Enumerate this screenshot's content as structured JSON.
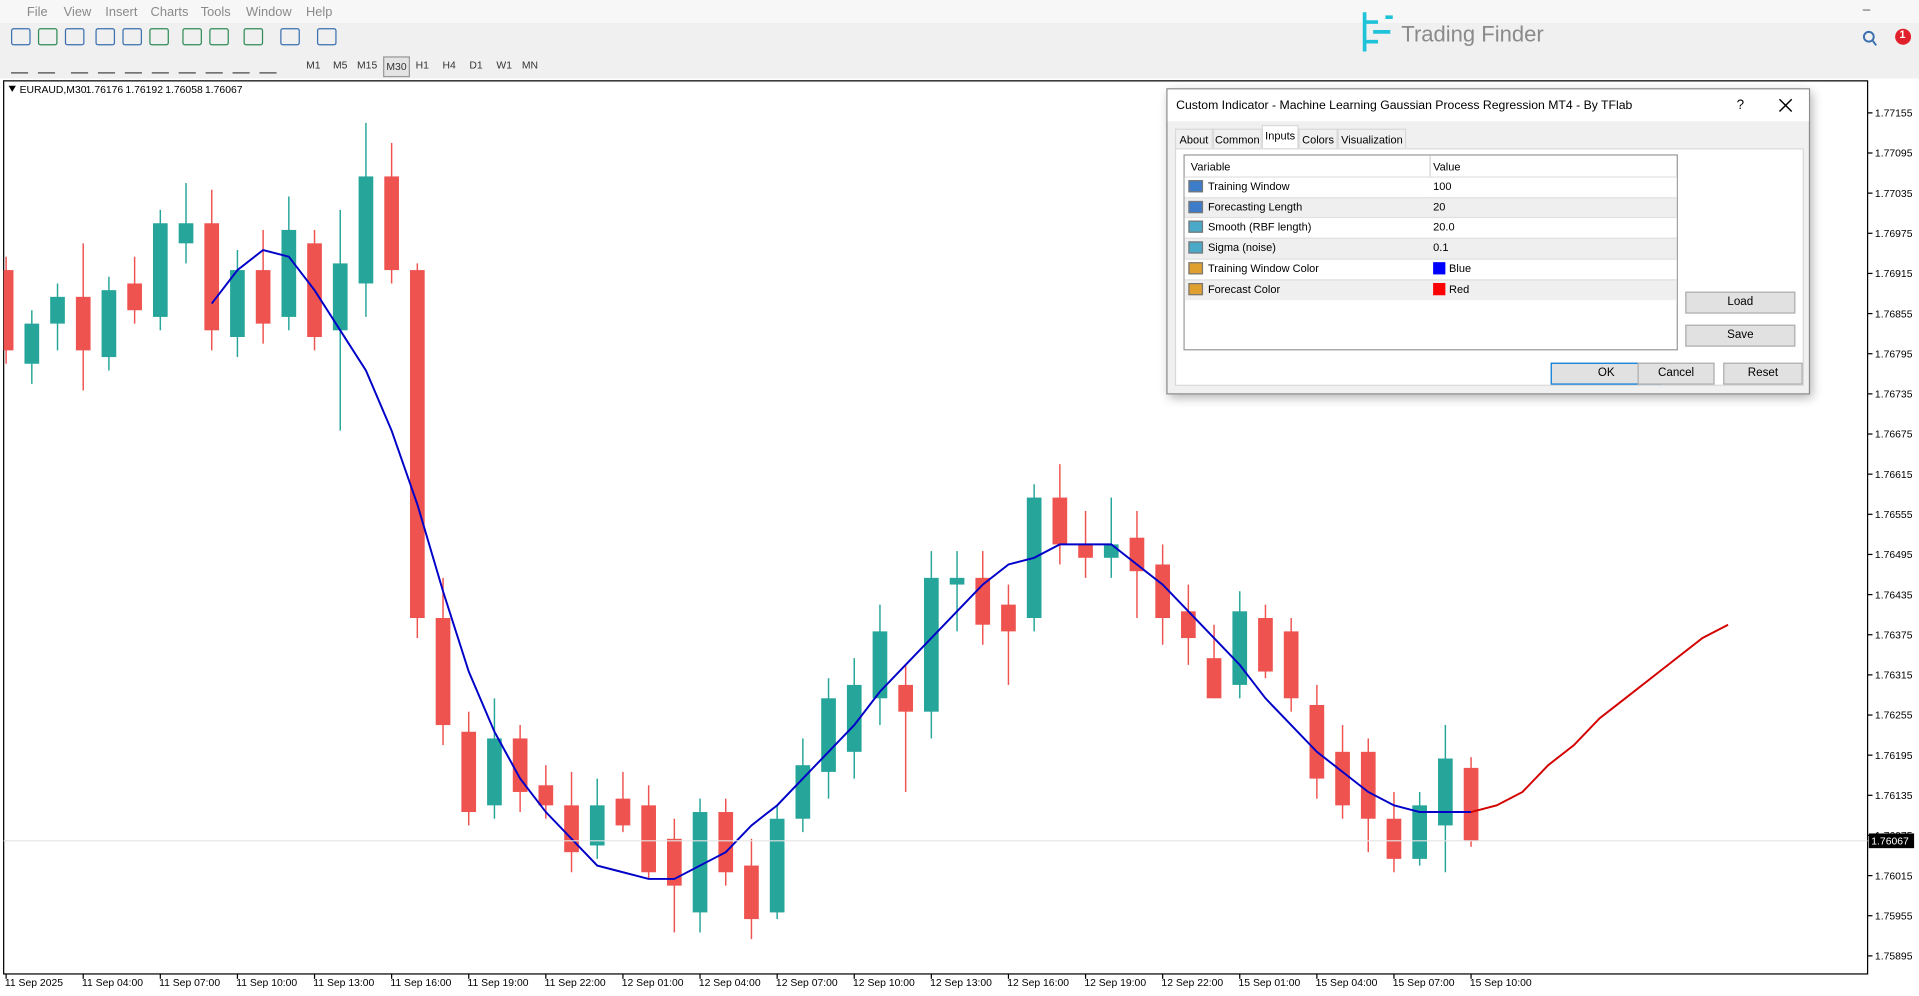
{
  "menu": [
    "File",
    "View",
    "Insert",
    "Charts",
    "Tools",
    "Window",
    "Help"
  ],
  "logo": "Trading Finder",
  "notification_count": "1",
  "timeframes": [
    "M1",
    "M5",
    "M15",
    "M30",
    "H1",
    "H4",
    "D1",
    "W1",
    "MN"
  ],
  "dialog": {
    "title": "Custom Indicator - Machine Learning Gaussian Process Regression MT4 - By TFlab",
    "help": "?",
    "tabs": [
      "About",
      "Common",
      "Inputs",
      "Colors",
      "Visualization"
    ],
    "headers": [
      "Variable",
      "Value"
    ],
    "rows": [
      {
        "name": "Training Window",
        "value": "100"
      },
      {
        "name": "Forecasting Length",
        "value": "20"
      },
      {
        "name": "Smooth (RBF length)",
        "value": "20.0"
      },
      {
        "name": "Sigma (noise)",
        "value": "0.1"
      },
      {
        "name": "Training Window Color",
        "value": "Blue"
      },
      {
        "name": "Forecast Color",
        "value": "Red"
      }
    ],
    "buttons": {
      "load": "Load",
      "save": "Save",
      "ok": "OK",
      "cancel": "Cancel",
      "reset": "Reset"
    }
  },
  "chart_data": {
    "type": "candlestick",
    "symbol": "EURAUD,M30",
    "up_color": "#26a69a",
    "down_color": "#ef5350",
    "categories": [
      "11 Sep 2025",
      null,
      null,
      "11 Sep 04:00",
      null,
      null,
      "11 Sep 07:00",
      null,
      null,
      "11 Sep 10:00",
      null,
      null,
      "11 Sep 13:00",
      null,
      null,
      "11 Sep 16:00",
      null,
      null,
      "11 Sep 19:00",
      null,
      null,
      "11 Sep 22:00",
      null,
      null,
      "12 Sep 01:00",
      null,
      null,
      "12 Sep 04:00",
      null,
      null,
      "12 Sep 07:00",
      null,
      null,
      "12 Sep 10:00",
      null,
      null,
      "12 Sep 13:00",
      null,
      null,
      "12 Sep 16:00",
      null,
      null,
      "12 Sep 19:00",
      null,
      null,
      "12 Sep 22:00",
      null,
      null,
      "15 Sep 01:00",
      null,
      null,
      "15 Sep 04:00",
      null,
      null,
      "15 Sep 07:00",
      null,
      null,
      "15 Sep 10:00",
      null,
      null,
      null,
      null,
      null,
      null,
      null,
      null,
      null,
      null
    ],
    "open": [
      1.7692,
      1.7678,
      1.7684,
      1.7688,
      1.7679,
      1.769,
      1.7685,
      1.7696,
      1.7699,
      1.7682,
      1.7692,
      1.7685,
      1.7696,
      1.7683,
      1.769,
      1.7706,
      1.7692,
      1.764,
      1.7623,
      1.7612,
      1.7622,
      1.7615,
      1.7612,
      1.7606,
      1.7613,
      1.7612,
      1.7607,
      1.7596,
      1.7611,
      1.7603,
      1.7596,
      1.761,
      1.7617,
      1.762,
      1.7628,
      1.763,
      1.7626,
      1.7645,
      1.7646,
      1.7642,
      1.764,
      1.7658,
      1.7651,
      1.7649,
      1.7652,
      1.7648,
      1.7641,
      1.7634,
      1.763,
      1.764,
      1.7638,
      1.7627,
      1.762,
      1.762,
      1.761,
      1.7604,
      1.7609,
      1.76176,
      null,
      null,
      null,
      null,
      null,
      null,
      null,
      null,
      null,
      null
    ],
    "high": [
      1.7694,
      1.7686,
      1.769,
      1.7696,
      1.7691,
      1.7694,
      1.7701,
      1.7705,
      1.7704,
      1.7695,
      1.7698,
      1.7703,
      1.7698,
      1.7701,
      1.7714,
      1.7711,
      1.7693,
      1.7646,
      1.7626,
      1.7628,
      1.7624,
      1.7618,
      1.7617,
      1.7616,
      1.7617,
      1.7615,
      1.761,
      1.7613,
      1.7613,
      1.7607,
      1.7612,
      1.7622,
      1.7631,
      1.7634,
      1.7642,
      1.7633,
      1.765,
      1.765,
      1.765,
      1.7645,
      1.766,
      1.7663,
      1.7656,
      1.7658,
      1.7656,
      1.7651,
      1.7645,
      1.7639,
      1.7644,
      1.7642,
      1.764,
      1.763,
      1.7624,
      1.7622,
      1.7614,
      1.7614,
      1.7624,
      1.76192,
      null,
      null,
      null,
      null,
      null,
      null,
      null,
      null,
      null,
      null
    ],
    "low": [
      1.7678,
      1.7675,
      1.768,
      1.7674,
      1.7677,
      1.7684,
      1.7683,
      1.7693,
      1.768,
      1.7679,
      1.7681,
      1.7683,
      1.768,
      1.7668,
      1.7685,
      1.769,
      1.7637,
      1.7621,
      1.7609,
      1.761,
      1.7611,
      1.761,
      1.7602,
      1.7604,
      1.7608,
      1.7601,
      1.7593,
      1.7593,
      1.76,
      1.7592,
      1.7595,
      1.7608,
      1.7613,
      1.7616,
      1.7624,
      1.7614,
      1.7622,
      1.7638,
      1.7636,
      1.763,
      1.7638,
      1.7648,
      1.7646,
      1.7646,
      1.764,
      1.7636,
      1.7633,
      1.7628,
      1.7628,
      1.7631,
      1.7626,
      1.7613,
      1.761,
      1.7605,
      1.7602,
      1.7603,
      1.7602,
      1.76058,
      null,
      null,
      null,
      null,
      null,
      null,
      null,
      null,
      null,
      null
    ],
    "close": [
      1.768,
      1.7684,
      1.7688,
      1.768,
      1.7689,
      1.7686,
      1.7699,
      1.7699,
      1.7683,
      1.7692,
      1.7684,
      1.7698,
      1.7682,
      1.7693,
      1.7706,
      1.7692,
      1.764,
      1.7624,
      1.7611,
      1.7622,
      1.7614,
      1.7612,
      1.7605,
      1.7612,
      1.7609,
      1.7602,
      1.76,
      1.7611,
      1.7602,
      1.7595,
      1.761,
      1.7618,
      1.7628,
      1.763,
      1.7638,
      1.7626,
      1.7646,
      1.7646,
      1.7639,
      1.7638,
      1.7658,
      1.7651,
      1.7649,
      1.7651,
      1.7647,
      1.764,
      1.7637,
      1.7628,
      1.7641,
      1.7632,
      1.7628,
      1.7616,
      1.7612,
      1.761,
      1.7604,
      1.7612,
      1.7619,
      1.76067,
      null,
      null,
      null,
      null,
      null,
      null,
      null,
      null,
      null,
      null
    ],
    "series": [
      {
        "color": "#0000c8",
        "values": [
          null,
          null,
          null,
          null,
          null,
          null,
          null,
          null,
          1.7687,
          1.7692,
          1.7695,
          1.7694,
          1.7689,
          1.7683,
          1.7677,
          1.7668,
          1.7657,
          1.7644,
          1.7632,
          1.7623,
          1.7616,
          1.7611,
          1.7607,
          1.7603,
          1.7602,
          1.7601,
          1.7601,
          1.7603,
          1.7605,
          1.7609,
          1.7612,
          1.7616,
          1.762,
          1.7624,
          1.7629,
          1.7633,
          1.7637,
          1.7641,
          1.7645,
          1.7648,
          1.7649,
          1.7651,
          1.7651,
          1.7651,
          1.7648,
          1.7645,
          1.7641,
          1.7637,
          1.7633,
          1.7628,
          1.7624,
          1.762,
          1.7617,
          1.7614,
          1.7612,
          1.7611,
          1.7611,
          1.7611,
          null,
          null,
          null,
          null,
          null,
          null,
          null,
          null,
          null,
          null
        ]
      },
      {
        "color": "#d40000",
        "values": [
          null,
          null,
          null,
          null,
          null,
          null,
          null,
          null,
          null,
          null,
          null,
          null,
          null,
          null,
          null,
          null,
          null,
          null,
          null,
          null,
          null,
          null,
          null,
          null,
          null,
          null,
          null,
          null,
          null,
          null,
          null,
          null,
          null,
          null,
          null,
          null,
          null,
          null,
          null,
          null,
          null,
          null,
          null,
          null,
          null,
          null,
          null,
          null,
          null,
          null,
          null,
          null,
          null,
          null,
          null,
          null,
          null,
          1.7611,
          1.7612,
          1.7614,
          1.7618,
          1.7621,
          1.7625,
          1.7628,
          1.7631,
          1.7634,
          1.7637,
          1.7639
        ]
      }
    ],
    "ylim": [
      1.75868,
      1.77201
    ],
    "yticks": [
      1.77155,
      1.77095,
      1.77035,
      1.76975,
      1.76915,
      1.76855,
      1.76795,
      1.76735,
      1.76675,
      1.76615,
      1.76555,
      1.76495,
      1.76435,
      1.76375,
      1.76315,
      1.76255,
      1.76195,
      1.76135,
      1.76075,
      1.76015,
      1.75955,
      1.75895
    ]
  }
}
